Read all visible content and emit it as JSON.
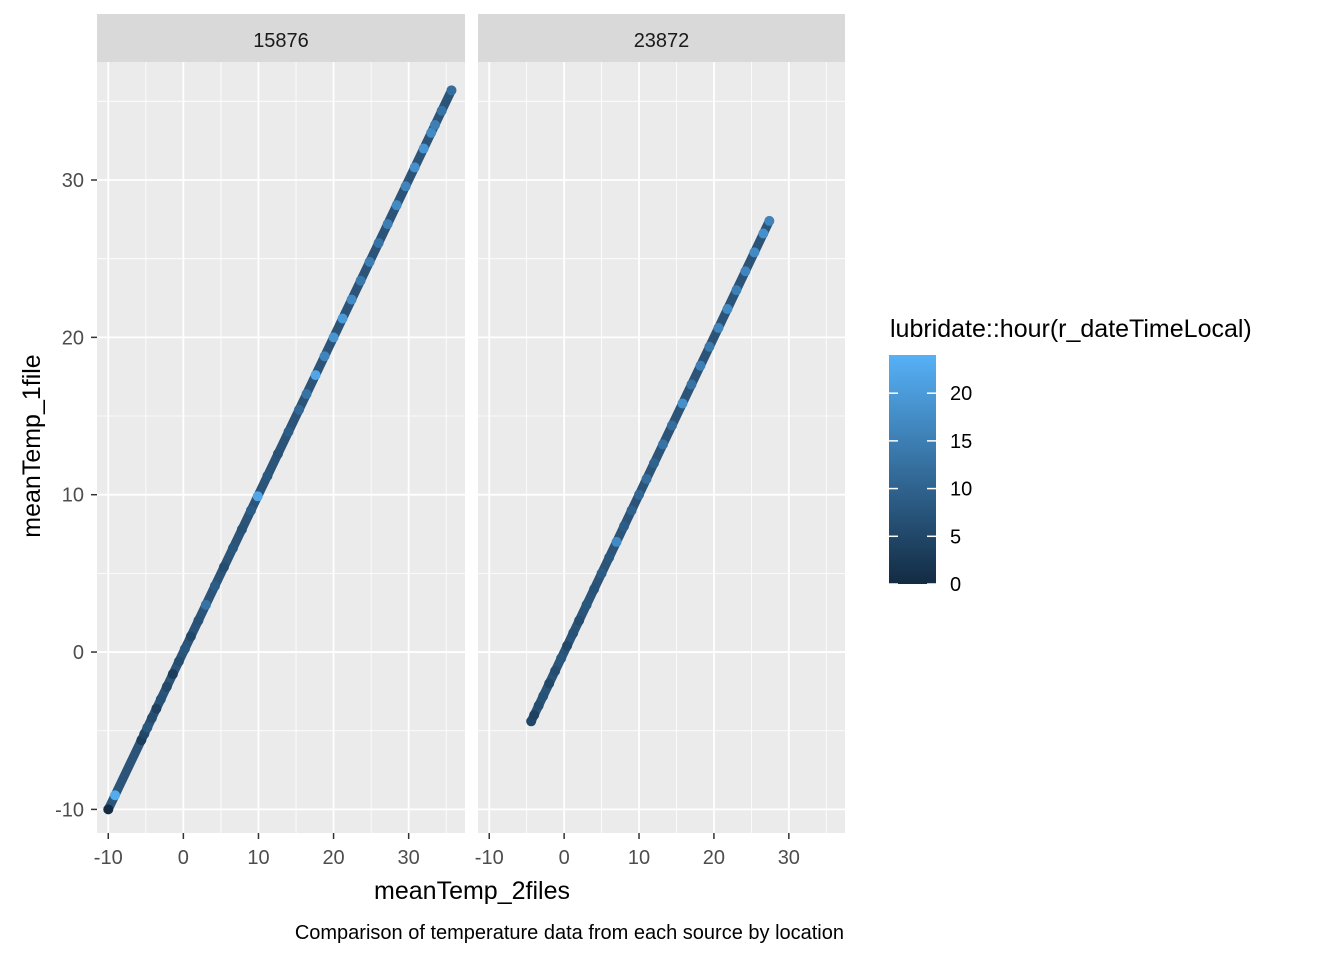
{
  "chart_data": {
    "type": "scatter",
    "facets": [
      {
        "label": "15876",
        "x": [
          -10,
          -9.1,
          -5.6,
          -5.2,
          -4.8,
          -4.2,
          -3.6,
          -3.0,
          -2.2,
          -1.4,
          -0.6,
          0.2,
          1.0,
          2.0,
          3.0,
          4.2,
          5.4,
          6.6,
          7.8,
          9.0,
          9.9,
          11.2,
          12.6,
          14.0,
          15.4,
          16.4,
          17.6,
          18.8,
          20.0,
          21.2,
          22.4,
          23.6,
          24.8,
          26.0,
          27.2,
          28.4,
          29.6,
          30.8,
          32.0,
          33.0,
          33.5,
          34.4,
          35.7
        ],
        "y": [
          -10,
          -9.1,
          -5.6,
          -5.2,
          -4.8,
          -4.2,
          -3.6,
          -3.0,
          -2.2,
          -1.4,
          -0.6,
          0.2,
          1.0,
          2.0,
          3.0,
          4.2,
          5.4,
          6.6,
          7.8,
          9.0,
          9.9,
          11.2,
          12.6,
          14.0,
          15.4,
          16.4,
          17.6,
          18.8,
          20.0,
          21.2,
          22.4,
          23.6,
          24.8,
          26.0,
          27.2,
          28.4,
          29.6,
          30.8,
          32.0,
          33.0,
          33.5,
          34.4,
          35.7
        ],
        "hour": [
          0,
          23,
          3,
          5,
          8,
          6,
          4,
          7,
          5,
          3,
          6,
          8,
          5,
          7,
          13,
          9,
          6,
          8,
          7,
          9,
          22,
          8,
          7,
          9,
          11,
          13,
          22,
          16,
          19,
          20,
          17,
          14,
          15,
          13,
          15,
          17,
          16,
          18,
          19,
          17,
          15,
          13,
          12
        ]
      },
      {
        "label": "23872",
        "x": [
          -4.4,
          -4.0,
          -3.4,
          -2.8,
          -2.0,
          -1.2,
          -0.4,
          0.4,
          1.2,
          2.0,
          3.0,
          4.0,
          5.0,
          6.0,
          7.0,
          8.0,
          9.0,
          10.0,
          11.0,
          12.0,
          13.2,
          14.4,
          15.8,
          17.0,
          18.2,
          19.4,
          20.6,
          21.8,
          23.0,
          24.2,
          25.4,
          26.6,
          27.4
        ],
        "y": [
          -4.4,
          -4.0,
          -3.4,
          -2.8,
          -2.0,
          -1.2,
          -0.4,
          0.4,
          1.2,
          2.0,
          3.0,
          4.0,
          5.0,
          6.0,
          7.0,
          8.0,
          9.0,
          10.0,
          11.0,
          12.0,
          13.2,
          14.4,
          15.8,
          17.0,
          18.2,
          19.4,
          20.6,
          21.8,
          23.0,
          24.2,
          25.4,
          26.6,
          27.4
        ],
        "hour": [
          5,
          4,
          6,
          7,
          5,
          6,
          8,
          5,
          7,
          6,
          8,
          7,
          9,
          8,
          17,
          9,
          10,
          11,
          12,
          10,
          13,
          12,
          18,
          13,
          15,
          14,
          16,
          17,
          15,
          16,
          17,
          18,
          16
        ]
      }
    ],
    "xlabel": "meanTemp_2files",
    "ylabel": "meanTemp_1file",
    "caption": "Comparison of temperature data from each source by location",
    "xlim": [
      -11.5,
      37.5
    ],
    "ylim": [
      -11.5,
      37.5
    ],
    "x_ticks": [
      -10,
      0,
      10,
      20,
      30
    ],
    "y_ticks": [
      -10,
      0,
      10,
      20,
      30
    ],
    "x_tick_labels": [
      "-10",
      "0",
      "10",
      "20",
      "30"
    ],
    "y_tick_labels": [
      "-10",
      "0",
      "10",
      "20",
      "30"
    ],
    "grid": true,
    "legend": {
      "title": "lubridate::hour(r_dateTimeLocal)",
      "placement": "right",
      "range": [
        0,
        24
      ],
      "breaks": [
        0,
        5,
        10,
        15,
        20
      ],
      "break_labels": [
        "0",
        "5",
        "10",
        "15",
        "20"
      ],
      "low_color": "#132B43",
      "high_color": "#56B1F7"
    },
    "panel_background": "#EBEBEB",
    "strip_background": "#D9D9D9",
    "grid_color": "#FFFFFF"
  }
}
